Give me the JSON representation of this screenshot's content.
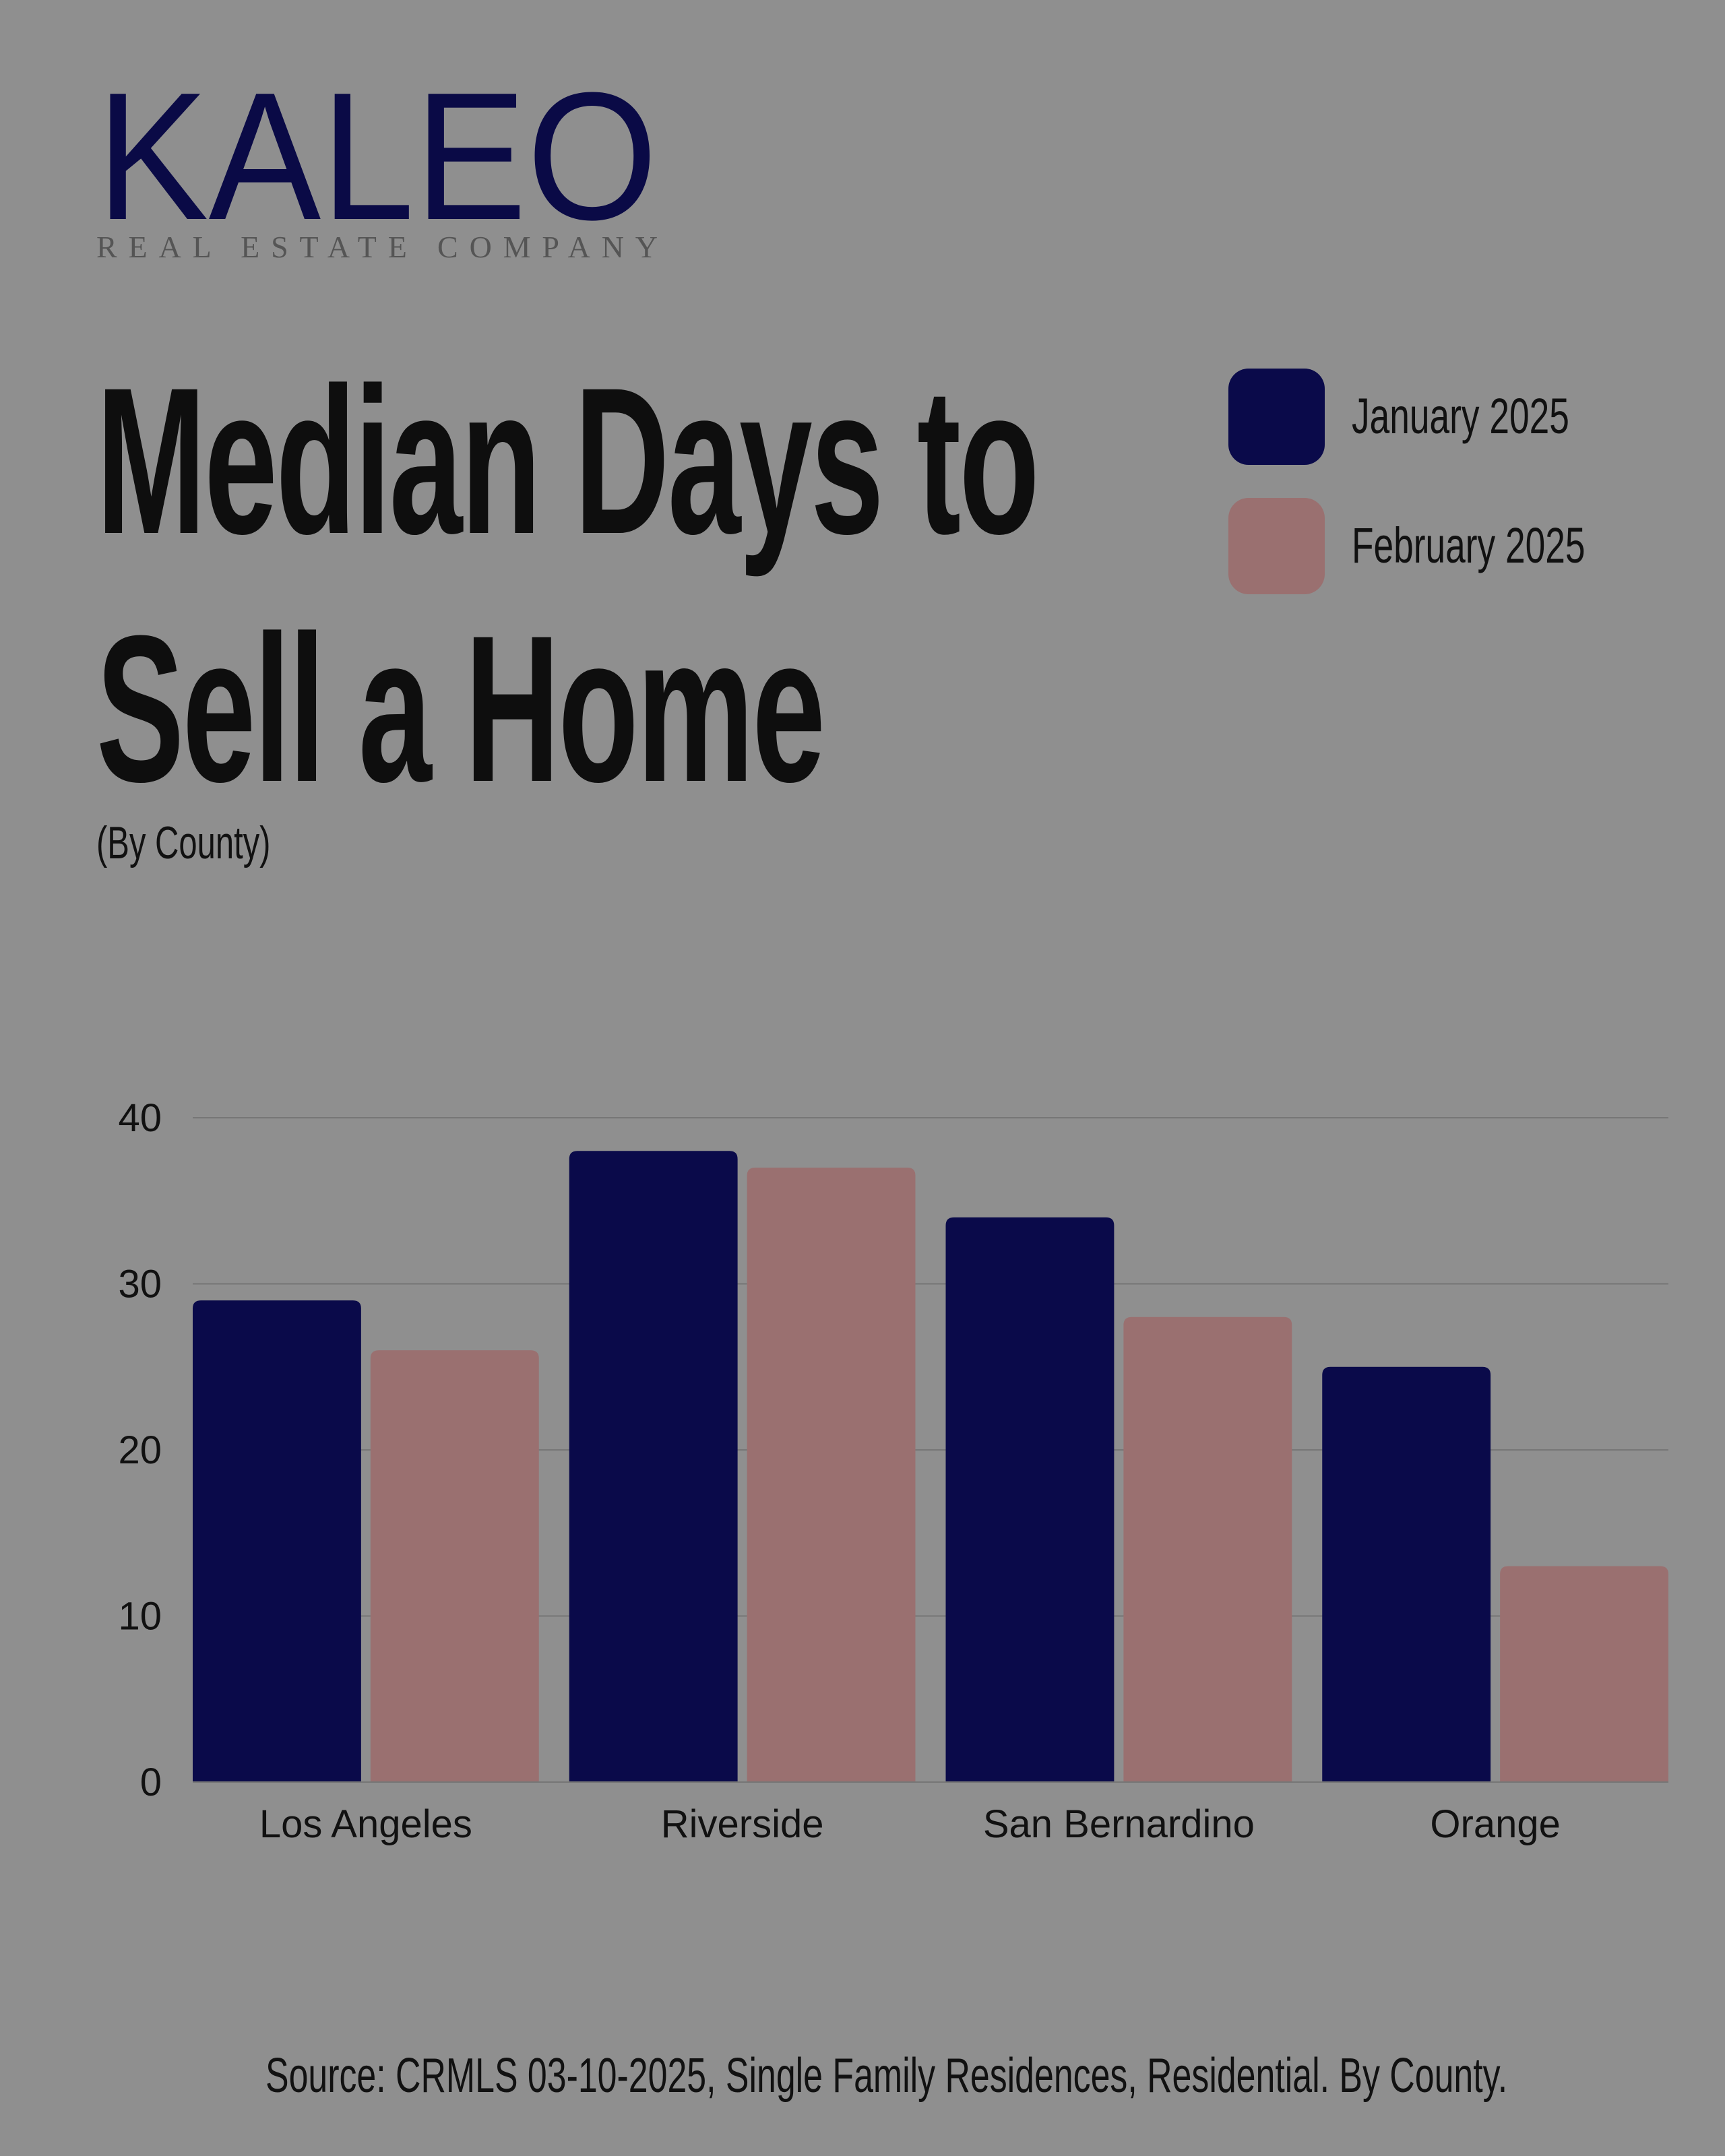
{
  "logo": {
    "name": "KALEO",
    "tagline": "REAL ESTATE COMPANY"
  },
  "chart_data": {
    "type": "bar",
    "title": "Median Days to Sell a Home",
    "subtitle": "(By County)",
    "source": "Source: CRMLS 03-10-2025, Single Family Residences, Residential. By County.",
    "categories": [
      "Los Angeles",
      "Riverside",
      "San Bernardino",
      "Orange"
    ],
    "series": [
      {
        "name": "January 2025",
        "color": "#0a0a4a",
        "values": [
          29,
          38,
          34,
          25
        ]
      },
      {
        "name": "February 2025",
        "color": "#9a7070",
        "values": [
          26,
          37,
          28,
          13
        ]
      }
    ],
    "ylim": [
      0,
      40
    ],
    "yticks": [
      0,
      10,
      20,
      30,
      40
    ],
    "grid": true
  }
}
